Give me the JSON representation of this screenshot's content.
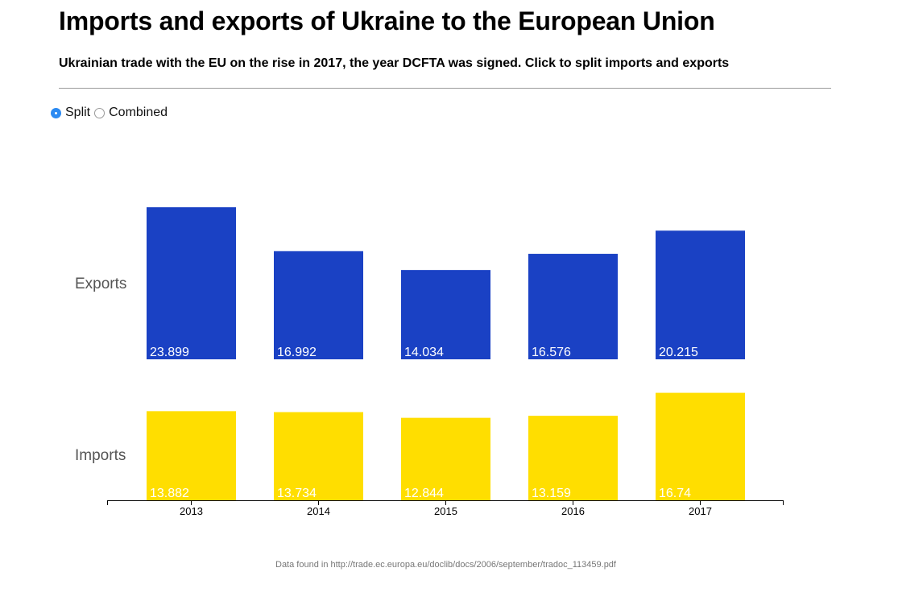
{
  "title": "Imports and exports of Ukraine to the European Union",
  "subtitle": "Ukrainian trade with the EU on the rise in 2017, the year DCFTA was signed. Click to split imports and exports",
  "toggle": {
    "split_label": "Split",
    "combined_label": "Combined",
    "selected": "Split"
  },
  "source": "Data found in http://trade.ec.europa.eu/doclib/docs/2006/september/tradoc_113459.pdf",
  "colors": {
    "exports": "#1a41c4",
    "imports": "#ffde00",
    "radio_selected": "#2b8af2"
  },
  "chart_data": {
    "type": "bar",
    "layout": "split",
    "categories": [
      "2013",
      "2014",
      "2015",
      "2016",
      "2017"
    ],
    "series": [
      {
        "name": "Exports",
        "values": [
          23.899,
          16.992,
          14.034,
          16.576,
          20.215
        ]
      },
      {
        "name": "Imports",
        "values": [
          13.882,
          13.734,
          12.844,
          13.159,
          16.74
        ]
      }
    ],
    "value_labels": {
      "Exports": [
        "23.899",
        "16.992",
        "14.034",
        "16.576",
        "20.215"
      ],
      "Imports": [
        "13.882",
        "13.734",
        "12.844",
        "13.159",
        "16.74"
      ]
    },
    "title": "",
    "xlabel": "",
    "ylabel": "",
    "grid": false
  }
}
